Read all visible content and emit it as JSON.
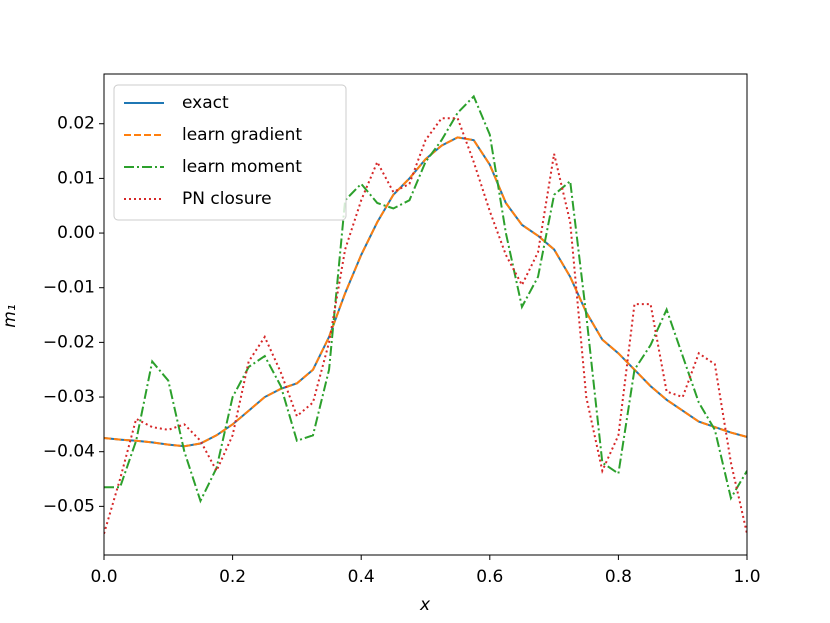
{
  "chart_data": {
    "type": "line",
    "xlabel": "x",
    "ylabel": "m₁",
    "x": [
      0,
      0.025,
      0.05,
      0.075,
      0.1,
      0.125,
      0.15,
      0.175,
      0.2,
      0.225,
      0.25,
      0.275,
      0.3,
      0.325,
      0.35,
      0.375,
      0.4,
      0.425,
      0.45,
      0.475,
      0.5,
      0.525,
      0.55,
      0.575,
      0.6,
      0.625,
      0.65,
      0.675,
      0.7,
      0.725,
      0.75,
      0.775,
      0.8,
      0.825,
      0.85,
      0.875,
      0.9,
      0.925,
      0.95,
      0.975,
      1.0
    ],
    "series": [
      {
        "name": "exact",
        "color": "#1f77b4",
        "linestyle": "solid",
        "values": [
          -0.0375,
          -0.0378,
          -0.038,
          -0.0383,
          -0.0387,
          -0.039,
          -0.0385,
          -0.037,
          -0.035,
          -0.0325,
          -0.03,
          -0.0285,
          -0.0275,
          -0.025,
          -0.019,
          -0.011,
          -0.004,
          0.002,
          0.007,
          0.01,
          0.0135,
          0.016,
          0.0175,
          0.017,
          0.0125,
          0.0055,
          0.0015,
          -0.0005,
          -0.003,
          -0.008,
          -0.0145,
          -0.0195,
          -0.022,
          -0.025,
          -0.028,
          -0.0305,
          -0.0325,
          -0.0345,
          -0.0355,
          -0.0365,
          -0.0373
        ]
      },
      {
        "name": "learn gradient",
        "color": "#ff7f0e",
        "linestyle": "dashed",
        "values": [
          -0.0375,
          -0.0378,
          -0.038,
          -0.0383,
          -0.0387,
          -0.039,
          -0.0385,
          -0.037,
          -0.035,
          -0.0325,
          -0.03,
          -0.0285,
          -0.0275,
          -0.025,
          -0.019,
          -0.011,
          -0.004,
          0.002,
          0.007,
          0.01,
          0.0135,
          0.016,
          0.0175,
          0.017,
          0.0125,
          0.0055,
          0.0015,
          -0.0005,
          -0.003,
          -0.008,
          -0.0145,
          -0.0195,
          -0.022,
          -0.025,
          -0.028,
          -0.0305,
          -0.0325,
          -0.0345,
          -0.0355,
          -0.0365,
          -0.0373
        ]
      },
      {
        "name": "learn moment",
        "color": "#2ca02c",
        "linestyle": "dashdot",
        "values": [
          -0.0465,
          -0.0465,
          -0.038,
          -0.0235,
          -0.027,
          -0.04,
          -0.049,
          -0.043,
          -0.03,
          -0.0245,
          -0.0225,
          -0.028,
          -0.038,
          -0.037,
          -0.025,
          0.006,
          0.009,
          0.0055,
          0.0045,
          0.006,
          0.013,
          0.017,
          0.022,
          0.025,
          0.018,
          0.0,
          -0.0135,
          -0.008,
          0.007,
          0.0095,
          -0.015,
          -0.042,
          -0.044,
          -0.025,
          -0.0205,
          -0.014,
          -0.0225,
          -0.031,
          -0.036,
          -0.0485,
          -0.0435
        ]
      },
      {
        "name": "PN closure",
        "color": "#d62728",
        "linestyle": "dotted",
        "values": [
          -0.055,
          -0.045,
          -0.034,
          -0.0355,
          -0.036,
          -0.035,
          -0.038,
          -0.0435,
          -0.037,
          -0.0235,
          -0.019,
          -0.0255,
          -0.0335,
          -0.031,
          -0.02,
          -0.003,
          0.006,
          0.013,
          0.0075,
          0.009,
          0.017,
          0.021,
          0.021,
          0.013,
          0.004,
          -0.004,
          -0.0095,
          -0.0035,
          0.0145,
          0.002,
          -0.03,
          -0.0435,
          -0.037,
          -0.013,
          -0.013,
          -0.029,
          -0.03,
          -0.022,
          -0.024,
          -0.042,
          -0.055
        ]
      }
    ],
    "xlim": [
      0,
      1
    ],
    "xticks": [
      {
        "value": 0,
        "label": "0.0"
      },
      0.2,
      0.4,
      0.6,
      0.8,
      {
        "value": 1,
        "label": "1.0"
      }
    ],
    "ylim": [
      -0.0589,
      0.0291
    ],
    "yticks": [
      {
        "value": -0.05,
        "label": "−0.05"
      },
      {
        "value": -0.04,
        "label": "−0.04"
      },
      {
        "value": -0.03,
        "label": "−0.03"
      },
      {
        "value": -0.02,
        "label": "−0.02"
      },
      {
        "value": -0.01,
        "label": "−0.01"
      },
      {
        "value": 0,
        "label": "0.00"
      },
      0.01,
      0.02
    ],
    "grid": false,
    "legend": "upper left"
  }
}
